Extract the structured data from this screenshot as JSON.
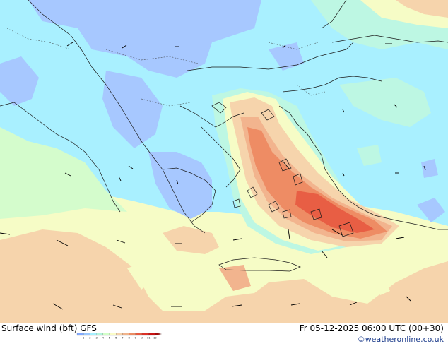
{
  "title": "Surface wind (bft)   GFS",
  "datetime": "Fr 05-12-2025 06:00 UTC (00+30)",
  "credit": "©weatheronline.co.uk",
  "legend": {
    "labels": [
      "1",
      "2",
      "3",
      "4",
      "5",
      "6",
      "7",
      "8",
      "9",
      "10",
      "11",
      "12"
    ],
    "colors": [
      "#82a9ff",
      "#9bc8ff",
      "#a6f0ff",
      "#b4f5dc",
      "#d2ffc8",
      "#fafcc8",
      "#f5d2aa",
      "#f0b48c",
      "#eb8c64",
      "#e65a41",
      "#dc3228",
      "#c81414",
      "#a00a0a"
    ]
  },
  "palette": {
    "b2": "#a7c8ff",
    "b3": "#a9f0ff",
    "b4": "#bdf7e3",
    "b5": "#d4fccc",
    "b6": "#f6fcc6",
    "b7": "#f6d4ac",
    "b8": "#f2b48e",
    "b9": "#ee8c64",
    "b10": "#e85e44"
  }
}
